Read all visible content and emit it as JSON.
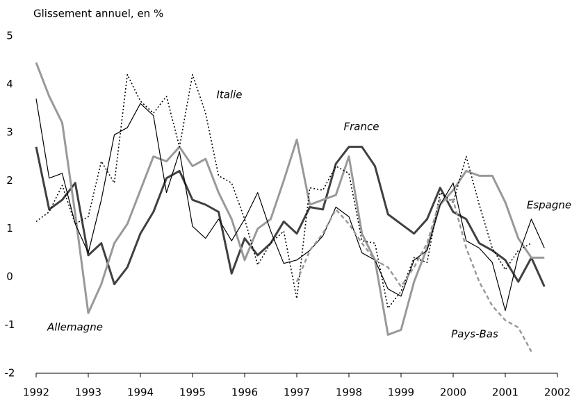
{
  "chart_data": {
    "type": "line",
    "title": "Glissement annuel, en %",
    "x": [
      1992,
      1992.25,
      1992.5,
      1992.75,
      1993,
      1993.25,
      1993.5,
      1993.75,
      1994,
      1994.25,
      1994.5,
      1994.75,
      1995,
      1995.25,
      1995.5,
      1995.75,
      1996,
      1996.25,
      1996.5,
      1996.75,
      1997,
      1997.25,
      1997.5,
      1997.75,
      1998,
      1998.25,
      1998.5,
      1998.75,
      1999,
      1999.25,
      1999.5,
      1999.75,
      2000,
      2000.25,
      2000.5,
      2000.75,
      2001,
      2001.25,
      2001.5,
      2001.75
    ],
    "xlim": [
      1992,
      2002
    ],
    "xticks": [
      1992,
      1993,
      1994,
      1995,
      1996,
      1997,
      1998,
      1999,
      2000,
      2001,
      2002
    ],
    "ylim": [
      -2,
      5
    ],
    "yticks": [
      -2,
      -1,
      0,
      1,
      2,
      3,
      4,
      5
    ],
    "series": [
      {
        "name": "France",
        "color": "#404040",
        "dash": "solid",
        "values": [
          2.7,
          1.4,
          1.6,
          1.95,
          0.45,
          0.7,
          -0.15,
          0.2,
          0.9,
          1.35,
          2.05,
          2.2,
          1.6,
          1.5,
          1.35,
          0.07,
          0.8,
          0.45,
          0.7,
          1.15,
          0.9,
          1.45,
          1.4,
          2.35,
          2.7,
          2.7,
          2.3,
          1.3,
          1.1,
          0.9,
          1.2,
          1.85,
          1.35,
          1.2,
          0.7,
          0.55,
          0.35,
          -0.1,
          0.4,
          -0.2
        ]
      },
      {
        "name": "Espagne",
        "color": "#999999",
        "dash": "solid",
        "values": [
          4.45,
          3.75,
          3.2,
          1.3,
          -0.75,
          -0.15,
          0.7,
          1.1,
          1.8,
          2.5,
          2.4,
          2.7,
          2.3,
          2.45,
          1.75,
          1.2,
          0.35,
          1.0,
          1.2,
          2.0,
          2.85,
          1.5,
          1.6,
          1.7,
          2.5,
          0.9,
          0.35,
          -1.2,
          -1.1,
          -0.1,
          0.6,
          1.5,
          1.8,
          2.2,
          2.1,
          2.1,
          1.55,
          0.8,
          0.4,
          0.4
        ]
      },
      {
        "name": "Allemagne",
        "color": "#000000",
        "dash": "solid",
        "values": [
          3.7,
          2.05,
          2.15,
          1.1,
          0.5,
          1.6,
          2.95,
          3.1,
          3.6,
          3.35,
          1.75,
          2.6,
          1.05,
          0.8,
          1.2,
          0.75,
          1.2,
          1.75,
          0.95,
          0.28,
          0.35,
          0.55,
          0.85,
          1.45,
          1.25,
          0.5,
          0.35,
          -0.25,
          -0.4,
          0.35,
          0.55,
          1.5,
          1.95,
          0.75,
          0.6,
          0.3,
          -0.7,
          0.45,
          1.2,
          0.6
        ]
      },
      {
        "name": "Italie",
        "color": "#000000",
        "dash": "dotted",
        "values": [
          1.15,
          1.35,
          1.9,
          1.1,
          1.25,
          2.4,
          1.95,
          4.2,
          3.65,
          3.4,
          3.75,
          2.7,
          4.2,
          3.4,
          2.1,
          1.95,
          1.2,
          0.25,
          0.7,
          0.95,
          -0.45,
          1.85,
          1.8,
          2.3,
          2.15,
          0.75,
          0.7,
          -0.65,
          -0.3,
          0.4,
          0.3,
          1.75,
          1.55,
          2.5,
          1.5,
          0.6,
          0.15,
          0.55,
          0.7,
          null
        ]
      },
      {
        "name": "Pays-Bas",
        "color": "#999999",
        "dash": "dashed",
        "values": [
          null,
          null,
          null,
          null,
          null,
          null,
          null,
          null,
          null,
          null,
          null,
          null,
          null,
          null,
          null,
          null,
          null,
          null,
          null,
          null,
          -0.1,
          0.55,
          0.9,
          1.4,
          1.1,
          0.7,
          0.35,
          0.2,
          -0.2,
          0.2,
          0.7,
          1.6,
          1.6,
          0.6,
          -0.1,
          -0.6,
          -0.9,
          -1.05,
          -1.55,
          null
        ]
      }
    ]
  }
}
